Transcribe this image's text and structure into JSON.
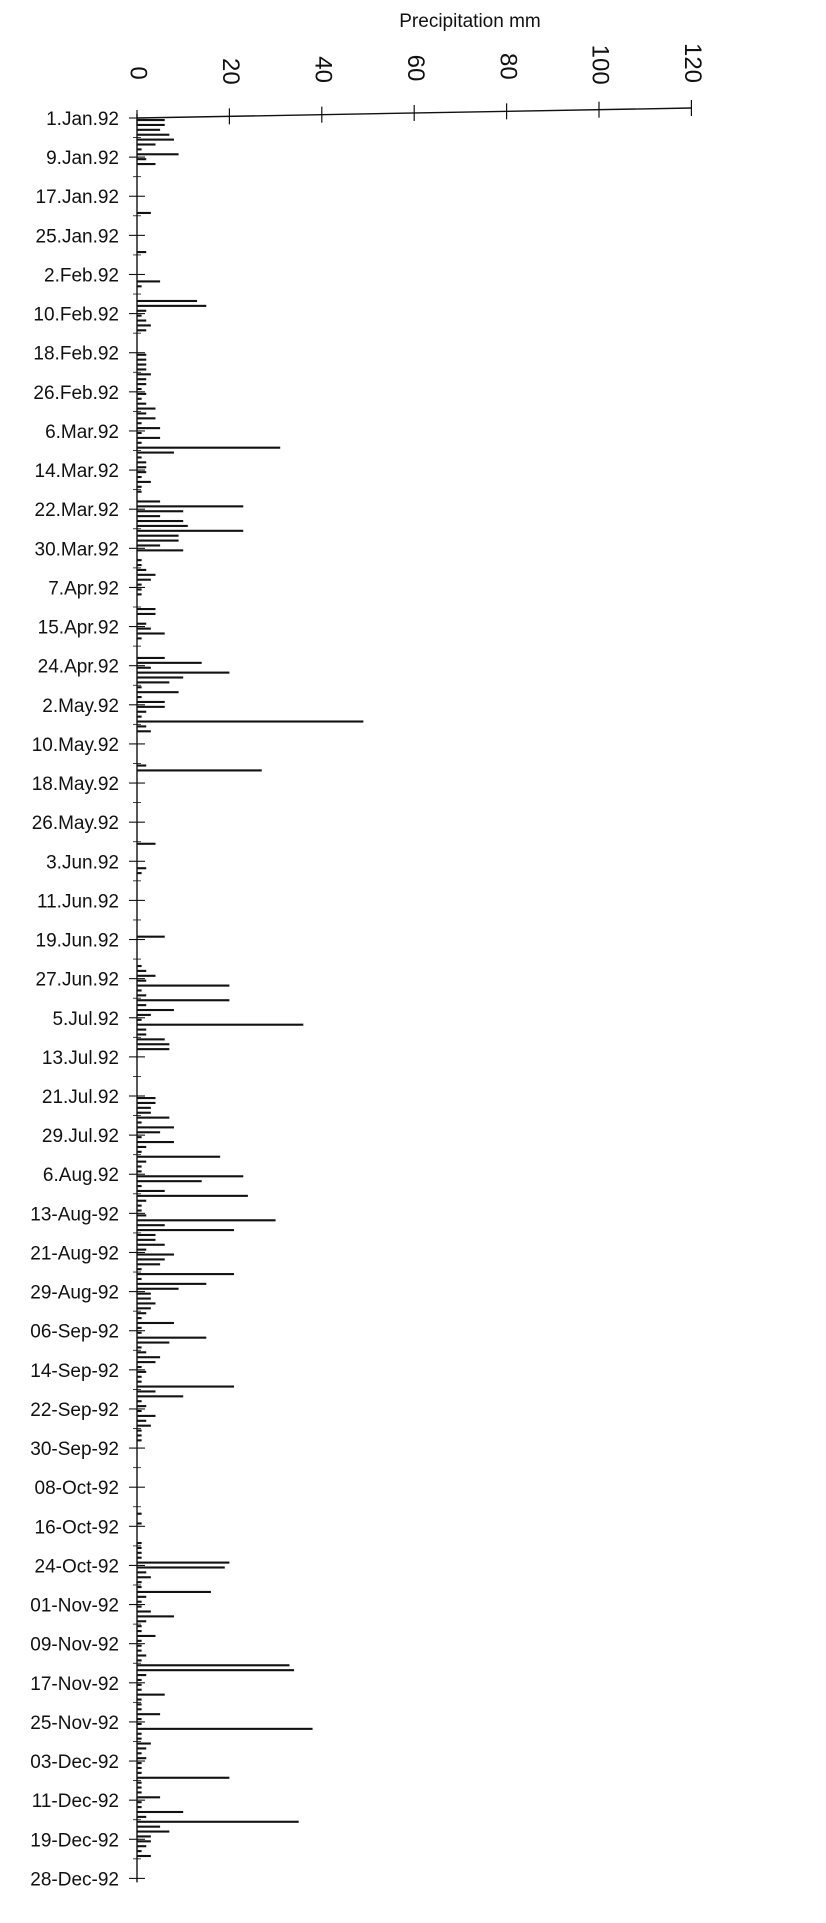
{
  "chart_data": {
    "type": "bar",
    "orientation": "horizontal",
    "title": "Precipitation mm",
    "xlabel": "Precipitation mm",
    "ylabel": "",
    "xlim": [
      0,
      120
    ],
    "x_ticks": [
      0,
      20,
      40,
      60,
      80,
      100,
      120
    ],
    "date_ticks": [
      "1.Jan.92",
      "9.Jan.92",
      "17.Jan.92",
      "25.Jan.92",
      "2.Feb.92",
      "10.Feb.92",
      "18.Feb.92",
      "26.Feb.92",
      "6.Mar.92",
      "14.Mar.92",
      "22.Mar.92",
      "30.Mar.92",
      "7.Apr.92",
      "15.Apr.92",
      "24.Apr.92",
      "2.May.92",
      "10.May.92",
      "18.May.92",
      "26.May.92",
      "3.Jun.92",
      "11.Jun.92",
      "19.Jun.92",
      "27.Jun.92",
      "5.Jul.92",
      "13.Jul.92",
      "21.Jul.92",
      "29.Jul.92",
      "6.Aug.92",
      "13-Aug-92",
      "21-Aug-92",
      "29-Aug-92",
      "06-Sep-92",
      "14-Sep-92",
      "22-Sep-92",
      "30-Sep-92",
      "08-Oct-92",
      "16-Oct-92",
      "24-Oct-92",
      "01-Nov-92",
      "09-Nov-92",
      "17-Nov-92",
      "25-Nov-92",
      "03-Dec-92",
      "11-Dec-92",
      "19-Dec-92",
      "28-Dec-92"
    ],
    "grid": false,
    "legend": "none",
    "bar_color": "#111111",
    "series": [
      {
        "days": [
          1,
          2,
          3,
          4,
          5,
          6,
          7,
          8,
          9,
          10,
          20,
          28,
          34,
          35,
          38,
          39,
          40,
          41,
          42,
          43,
          44,
          49,
          50,
          51,
          52,
          53,
          54,
          55,
          56,
          57,
          58,
          59,
          60,
          61,
          62,
          63,
          64,
          65,
          66,
          67,
          68,
          69,
          70,
          71,
          72,
          73,
          74,
          75,
          76,
          77,
          79,
          80,
          81,
          82,
          83,
          84,
          85,
          86,
          87,
          88,
          89,
          91,
          92,
          93,
          94,
          95,
          96,
          97,
          98,
          101,
          102,
          104,
          105,
          106,
          107,
          111,
          112,
          113,
          114,
          115,
          116,
          117,
          118,
          119,
          120,
          121,
          122,
          123,
          124,
          125,
          126,
          133,
          134,
          149,
          154,
          155,
          168,
          174,
          175,
          176,
          177,
          178,
          179,
          180,
          181,
          182,
          183,
          184,
          185,
          186,
          187,
          188,
          189,
          190,
          191,
          201,
          202,
          203,
          204,
          205,
          206,
          207,
          208,
          209,
          210,
          211,
          212,
          213,
          214,
          215,
          216,
          217,
          218,
          219,
          220,
          221,
          222,
          223,
          224,
          225,
          226,
          227,
          228,
          229,
          230,
          231,
          232,
          233,
          234,
          235,
          236,
          237,
          238,
          239,
          240,
          241,
          242,
          243,
          244,
          245,
          246,
          247,
          248,
          249,
          250,
          251,
          252,
          253,
          254,
          255,
          256,
          257,
          258,
          259,
          260,
          261,
          262,
          263,
          264,
          265,
          266,
          267,
          268,
          269,
          270,
          271,
          286,
          288,
          292,
          293,
          294,
          295,
          296,
          297,
          298,
          299,
          300,
          301,
          302,
          303,
          304,
          305,
          306,
          307,
          308,
          309,
          310,
          311,
          312,
          313,
          314,
          315,
          316,
          317,
          318,
          319,
          320,
          321,
          322,
          323,
          324,
          325,
          326,
          327,
          328,
          329,
          330,
          331,
          332,
          333,
          334,
          335,
          336,
          337,
          338,
          339,
          340,
          341,
          342,
          343,
          344,
          345,
          346,
          347,
          348,
          349,
          350,
          351,
          352,
          353,
          354,
          355,
          356
        ],
        "values": [
          6,
          6,
          5,
          7,
          8,
          4,
          1,
          9,
          2,
          4,
          3,
          2,
          5,
          1,
          13,
          15,
          2,
          1,
          2,
          3,
          2,
          2,
          2,
          2,
          2,
          3,
          2,
          2,
          1,
          2,
          1,
          2,
          4,
          2,
          4,
          1,
          5,
          1,
          5,
          1,
          31,
          8,
          1,
          2,
          2,
          2,
          1,
          3,
          1,
          1,
          5,
          23,
          10,
          5,
          10,
          11,
          23,
          9,
          9,
          5,
          10,
          1,
          1,
          2,
          4,
          3,
          1,
          1,
          1,
          4,
          4,
          2,
          3,
          6,
          1,
          6,
          14,
          3,
          20,
          10,
          7,
          1,
          9,
          1,
          6,
          6,
          2,
          1,
          49,
          2,
          3,
          2,
          27,
          4,
          2,
          1,
          6,
          1,
          2,
          4,
          2,
          20,
          1,
          2,
          20,
          2,
          8,
          3,
          1,
          36,
          2,
          2,
          6,
          7,
          7,
          4,
          4,
          3,
          3,
          7,
          1,
          8,
          5,
          1,
          8,
          2,
          1,
          18,
          2,
          1,
          1,
          23,
          14,
          1,
          6,
          24,
          2,
          1,
          1,
          2,
          30,
          6,
          21,
          4,
          4,
          6,
          2,
          8,
          6,
          5,
          1,
          21,
          1,
          15,
          9,
          3,
          3,
          4,
          3,
          2,
          1,
          8,
          1,
          1,
          15,
          7,
          1,
          2,
          5,
          4,
          1,
          2,
          1,
          1,
          21,
          4,
          10,
          1,
          2,
          1,
          4,
          2,
          3,
          1,
          1,
          1,
          1,
          1,
          1,
          1,
          1,
          1,
          20,
          19,
          2,
          3,
          1,
          1,
          16,
          2,
          1,
          1,
          3,
          8,
          2,
          1,
          1,
          4,
          1,
          1,
          1,
          2,
          1,
          33,
          34,
          2,
          1,
          1,
          1,
          6,
          1,
          1,
          1,
          5,
          1,
          1,
          38,
          1,
          1,
          3,
          2,
          1,
          2,
          1,
          1,
          1,
          20,
          1,
          1,
          1,
          5,
          1,
          1,
          10,
          2,
          35,
          5,
          7,
          3,
          3,
          2,
          1,
          3
        ]
      }
    ]
  }
}
